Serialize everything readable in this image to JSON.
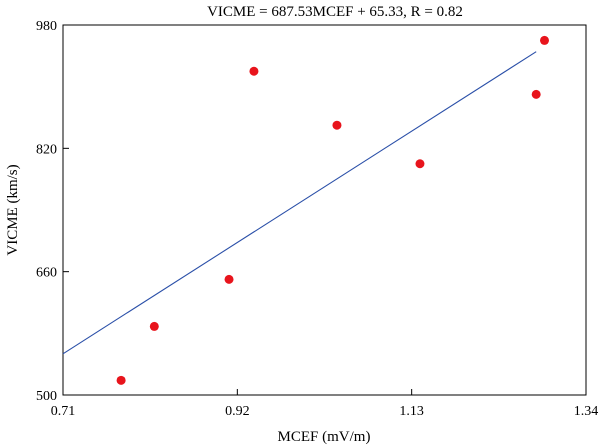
{
  "chart_data": {
    "type": "scatter",
    "title": "VICME = 687.53MCEF + 65.33, R = 0.82",
    "xlabel": "MCEF (mV/m)",
    "ylabel": "VICME (km/s)",
    "xlim": [
      0.71,
      1.34
    ],
    "ylim": [
      500,
      980
    ],
    "xticks": [
      0.71,
      0.92,
      1.13,
      1.34
    ],
    "yticks": [
      500,
      660,
      820,
      980
    ],
    "xtick_labels": [
      "0.71",
      "0.92",
      "1.13",
      "1.34"
    ],
    "ytick_labels": [
      "500",
      "660",
      "820",
      "980"
    ],
    "points": [
      {
        "x": 0.78,
        "y": 519
      },
      {
        "x": 0.82,
        "y": 589
      },
      {
        "x": 0.91,
        "y": 650
      },
      {
        "x": 0.94,
        "y": 920
      },
      {
        "x": 1.04,
        "y": 850
      },
      {
        "x": 1.14,
        "y": 800
      },
      {
        "x": 1.28,
        "y": 890
      },
      {
        "x": 1.29,
        "y": 960
      }
    ],
    "fit": {
      "slope": 687.53,
      "intercept": 65.33,
      "x_range": [
        0.71,
        1.28
      ]
    },
    "colors": {
      "points": "#e8141c",
      "fit_line": "#2a4fa8"
    },
    "grid": false,
    "legend": "none"
  }
}
